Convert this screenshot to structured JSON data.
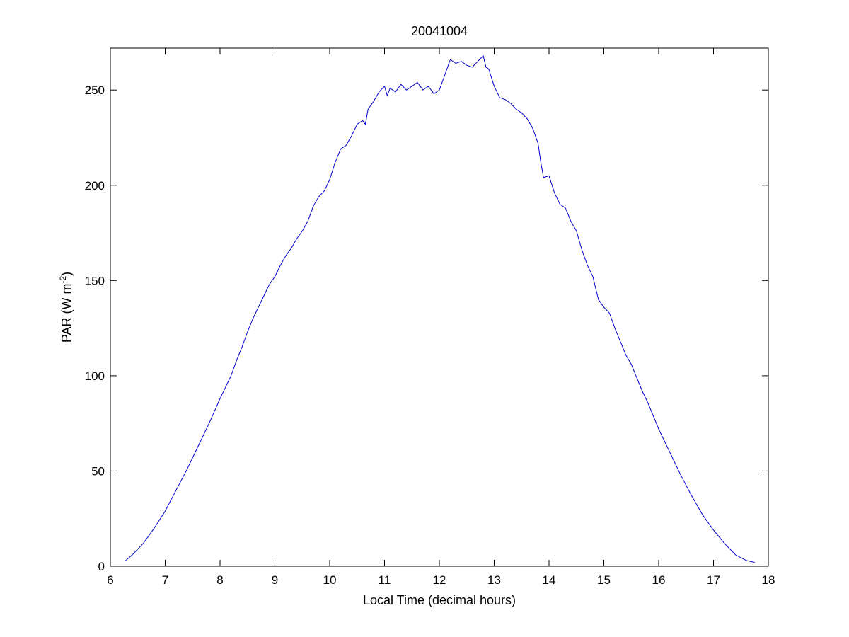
{
  "chart_data": {
    "type": "line",
    "title": "20041004",
    "xlabel": "Local Time (decimal hours)",
    "ylabel": {
      "text": "PAR (W m",
      "superscript": "-2",
      "suffix": ")"
    },
    "xlim": [
      6,
      18
    ],
    "ylim": [
      0,
      272
    ],
    "xticks": [
      6,
      7,
      8,
      9,
      10,
      11,
      12,
      13,
      14,
      15,
      16,
      17,
      18
    ],
    "yticks": [
      0,
      50,
      100,
      150,
      200,
      250
    ],
    "grid": false,
    "legend": "none",
    "series": [
      {
        "color": "#0000cc",
        "x": [
          6.28,
          6.4,
          6.6,
          6.8,
          7.0,
          7.2,
          7.4,
          7.6,
          7.8,
          8.0,
          8.2,
          8.3,
          8.4,
          8.5,
          8.6,
          8.7,
          8.8,
          8.9,
          9.0,
          9.1,
          9.2,
          9.3,
          9.4,
          9.5,
          9.6,
          9.7,
          9.8,
          9.9,
          10.0,
          10.1,
          10.2,
          10.3,
          10.4,
          10.5,
          10.6,
          10.65,
          10.7,
          10.8,
          10.9,
          11.0,
          11.05,
          11.1,
          11.2,
          11.3,
          11.4,
          11.5,
          11.6,
          11.7,
          11.8,
          11.9,
          12.0,
          12.1,
          12.2,
          12.3,
          12.4,
          12.5,
          12.6,
          12.7,
          12.8,
          12.85,
          12.9,
          13.0,
          13.1,
          13.2,
          13.3,
          13.4,
          13.5,
          13.6,
          13.7,
          13.8,
          13.85,
          13.9,
          14.0,
          14.1,
          14.2,
          14.3,
          14.4,
          14.5,
          14.6,
          14.7,
          14.8,
          14.9,
          15.0,
          15.1,
          15.2,
          15.3,
          15.4,
          15.5,
          15.6,
          15.7,
          15.8,
          15.9,
          16.0,
          16.2,
          16.4,
          16.6,
          16.8,
          17.0,
          17.2,
          17.4,
          17.6,
          17.75
        ],
        "y": [
          3,
          6,
          12,
          20,
          29,
          40,
          51,
          63,
          75,
          88,
          100,
          108,
          115,
          123,
          130,
          136,
          142,
          148,
          152,
          158,
          163,
          167,
          172,
          176,
          181,
          189,
          194,
          197,
          203,
          212,
          219,
          221,
          226,
          232,
          234,
          232,
          240,
          244,
          249,
          252,
          247,
          251,
          249,
          253,
          250,
          252,
          254,
          250,
          252,
          248,
          250,
          258,
          266,
          264,
          265,
          263,
          262,
          265,
          268,
          262,
          261,
          252,
          246,
          245,
          243,
          240,
          238,
          235,
          230,
          222,
          212,
          204,
          205,
          196,
          190,
          188,
          181,
          176,
          166,
          158,
          152,
          140,
          136,
          133,
          125,
          118,
          111,
          106,
          99,
          92,
          86,
          79,
          72,
          60,
          48,
          37,
          27,
          19,
          12,
          6,
          3,
          2
        ]
      }
    ]
  }
}
